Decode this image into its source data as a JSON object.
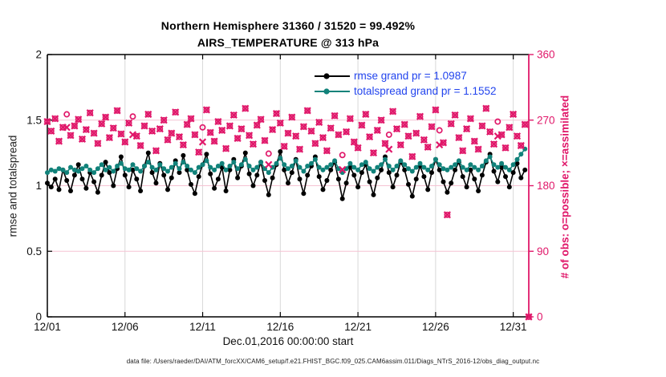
{
  "title": {
    "line1": "Northern Hemisphere 31360 / 31520 = 99.492%",
    "line2": "AIRS_TEMPERATURE @ 313 hPa"
  },
  "footer": {
    "data_file": "data file: /Users/raeder/DAI/ATM_forcXX/CAM6_setup/f.e21.FHIST_BGC.f09_025.CAM6assim.011/Diags_NTrS_2016-12/obs_diag_output.nc"
  },
  "colors": {
    "rmse": "#000000",
    "totalspread": "#11827a",
    "obs_pink": "#e0186a",
    "legend_text": "#2244ee",
    "grid_vertical": "#d8d8d8",
    "grid_horizontal": "#f5c3d3",
    "axis_black": "#000000"
  },
  "chart_data": {
    "type": "line",
    "title": "Northern Hemisphere 31360 / 31520 = 99.492%  AIRS_TEMPERATURE @ 313 hPa",
    "xlabel": "Dec.01,2016 00:00:00 start",
    "ylabel_left": "rmse and totalspread",
    "ylabel_right": "# of obs: o=possible; ×=assimilated",
    "ylim_left": [
      0,
      2
    ],
    "yticks_left": [
      0,
      0.5,
      1,
      1.5,
      2
    ],
    "ytick_labels_left": [
      "0",
      "0.5",
      "1",
      "1.5",
      "2"
    ],
    "ylim_right": [
      0,
      360
    ],
    "yticks_right": [
      0,
      90,
      180,
      270,
      360
    ],
    "ytick_labels_right": [
      "0",
      "90",
      "180",
      "270",
      "360"
    ],
    "x_span_days": 31,
    "xtick_days": [
      0,
      5,
      10,
      15,
      20,
      25,
      30
    ],
    "xtick_labels": [
      "12/01",
      "12/06",
      "12/11",
      "12/16",
      "12/21",
      "12/26",
      "12/31"
    ],
    "step_days": 0.25,
    "grid": true,
    "legend_position": "top-right-inside",
    "legend": [
      {
        "label": "rmse grand pr = 1.0987",
        "color": "#000000"
      },
      {
        "label": "totalspread grand pr = 1.1552",
        "color": "#11827a"
      }
    ],
    "series": {
      "rmse": [
        1.02,
        0.99,
        1.05,
        0.97,
        1.12,
        1.04,
        0.96,
        1.08,
        1.16,
        1.05,
        0.98,
        1.1,
        1.03,
        0.95,
        1.08,
        1.18,
        1.1,
        1.0,
        1.13,
        1.22,
        1.08,
        0.99,
        1.12,
        1.05,
        0.96,
        1.15,
        1.25,
        1.1,
        1.02,
        1.17,
        1.08,
        0.97,
        1.06,
        1.19,
        1.1,
        1.23,
        1.12,
        1.01,
        0.94,
        1.07,
        1.16,
        1.24,
        1.09,
        0.98,
        1.05,
        1.14,
        0.96,
        1.12,
        1.2,
        1.06,
        1.15,
        1.25,
        1.09,
        1.0,
        1.08,
        1.18,
        1.04,
        0.93,
        1.06,
        1.16,
        1.26,
        1.12,
        1.02,
        1.1,
        1.2,
        1.05,
        0.94,
        1.08,
        1.15,
        1.22,
        1.07,
        0.97,
        1.04,
        1.12,
        1.18,
        1.05,
        0.9,
        1.02,
        1.14,
        1.08,
        0.99,
        1.1,
        1.16,
        1.03,
        0.93,
        1.06,
        1.12,
        1.22,
        1.1,
        0.99,
        1.08,
        1.18,
        1.12,
        1.01,
        0.92,
        1.05,
        1.15,
        1.07,
        0.97,
        1.1,
        1.2,
        1.12,
        1.03,
        0.95,
        1.02,
        1.12,
        1.18,
        1.07,
        0.99,
        1.12,
        1.05,
        0.96,
        1.08,
        1.18,
        1.24,
        1.11,
        1.03,
        1.14,
        1.07,
        0.99,
        1.1,
        1.17,
        1.06,
        1.12
      ],
      "totalspread": [
        1.1,
        1.12,
        1.11,
        1.13,
        1.12,
        1.1,
        1.14,
        1.12,
        1.11,
        1.13,
        1.15,
        1.12,
        1.1,
        1.13,
        1.16,
        1.12,
        1.14,
        1.11,
        1.15,
        1.17,
        1.13,
        1.12,
        1.16,
        1.13,
        1.11,
        1.15,
        1.18,
        1.14,
        1.12,
        1.16,
        1.13,
        1.11,
        1.14,
        1.17,
        1.13,
        1.18,
        1.15,
        1.12,
        1.1,
        1.14,
        1.16,
        1.19,
        1.14,
        1.12,
        1.15,
        1.17,
        1.12,
        1.15,
        1.18,
        1.13,
        1.16,
        1.2,
        1.15,
        1.12,
        1.14,
        1.18,
        1.13,
        1.1,
        1.14,
        1.17,
        1.21,
        1.16,
        1.13,
        1.15,
        1.19,
        1.14,
        1.11,
        1.15,
        1.17,
        1.2,
        1.14,
        1.12,
        1.14,
        1.16,
        1.19,
        1.13,
        1.1,
        1.13,
        1.17,
        1.14,
        1.12,
        1.16,
        1.18,
        1.13,
        1.11,
        1.14,
        1.16,
        1.2,
        1.15,
        1.12,
        1.15,
        1.19,
        1.16,
        1.13,
        1.11,
        1.14,
        1.17,
        1.14,
        1.12,
        1.15,
        1.2,
        1.16,
        1.13,
        1.12,
        1.14,
        1.16,
        1.19,
        1.14,
        1.12,
        1.16,
        1.14,
        1.12,
        1.15,
        1.19,
        1.22,
        1.16,
        1.14,
        1.17,
        1.14,
        1.12,
        1.16,
        1.2,
        1.24,
        1.28
      ],
      "possible": [
        268,
        255,
        272,
        241,
        260,
        278,
        249,
        262,
        271,
        244,
        257,
        280,
        252,
        238,
        265,
        274,
        246,
        259,
        283,
        251,
        240,
        266,
        275,
        248,
        235,
        262,
        278,
        255,
        228,
        258,
        270,
        243,
        252,
        281,
        247,
        236,
        264,
        272,
        250,
        226,
        260,
        284,
        253,
        241,
        268,
        256,
        231,
        262,
        277,
        245,
        258,
        286,
        249,
        237,
        263,
        271,
        242,
        224,
        257,
        279,
        266,
        234,
        252,
        274,
        248,
        230,
        261,
        283,
        255,
        238,
        267,
        246,
        228,
        259,
        276,
        250,
        222,
        254,
        272,
        240,
        232,
        263,
        278,
        247,
        225,
        256,
        270,
        238,
        250,
        282,
        258,
        236,
        264,
        248,
        220,
        252,
        275,
        243,
        233,
        261,
        284,
        256,
        239,
        140,
        265,
        277,
        246,
        228,
        258,
        272,
        241,
        230,
        262,
        286,
        254,
        237,
        268,
        250,
        232,
        260,
        278,
        248,
        235,
        264,
        0
      ],
      "assimilated": [
        268,
        255,
        272,
        241,
        260,
        260,
        249,
        262,
        271,
        244,
        257,
        280,
        252,
        238,
        265,
        274,
        246,
        259,
        283,
        251,
        240,
        266,
        250,
        248,
        235,
        262,
        278,
        255,
        228,
        258,
        270,
        243,
        252,
        281,
        247,
        236,
        264,
        272,
        250,
        226,
        240,
        284,
        253,
        241,
        268,
        256,
        231,
        262,
        277,
        245,
        258,
        286,
        249,
        237,
        263,
        271,
        242,
        209,
        257,
        279,
        266,
        234,
        252,
        274,
        248,
        230,
        261,
        283,
        255,
        238,
        267,
        246,
        228,
        259,
        276,
        250,
        202,
        254,
        272,
        240,
        232,
        263,
        278,
        247,
        225,
        256,
        270,
        238,
        230,
        282,
        258,
        236,
        264,
        248,
        220,
        252,
        275,
        243,
        233,
        261,
        284,
        236,
        239,
        140,
        265,
        277,
        246,
        228,
        258,
        272,
        241,
        230,
        262,
        286,
        254,
        237,
        248,
        250,
        232,
        260,
        278,
        248,
        235,
        264,
        0
      ]
    }
  }
}
